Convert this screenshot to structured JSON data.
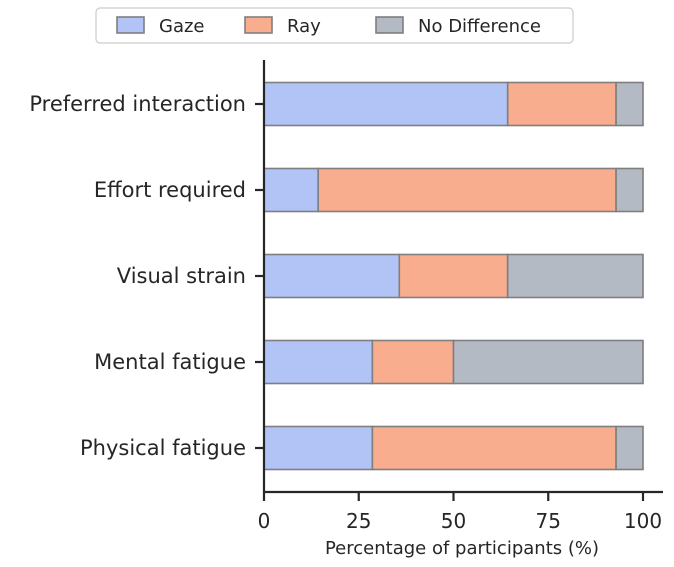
{
  "chart_data": {
    "type": "bar",
    "orientation": "horizontal",
    "stacked": true,
    "categories": [
      "Preferred interaction",
      "Effort required",
      "Visual strain",
      "Mental fatigue",
      "Physical fatigue"
    ],
    "series": [
      {
        "name": "Gaze",
        "values": [
          64.3,
          14.3,
          35.7,
          28.6,
          28.6
        ],
        "color": "#b2c4f5"
      },
      {
        "name": "Ray",
        "values": [
          28.6,
          78.6,
          28.6,
          21.4,
          64.3
        ],
        "color": "#f9ad8f"
      },
      {
        "name": "No Difference",
        "values": [
          7.1,
          7.1,
          35.7,
          50.0,
          7.1
        ],
        "color": "#b3bac4"
      }
    ],
    "xticks": [
      "0",
      "25",
      "50",
      "75",
      "100"
    ],
    "xlim": [
      0,
      105
    ],
    "xlabel": "Percentage of participants (%)",
    "ylabel": "",
    "title": "",
    "legend_position": "top-center",
    "grid": false
  }
}
